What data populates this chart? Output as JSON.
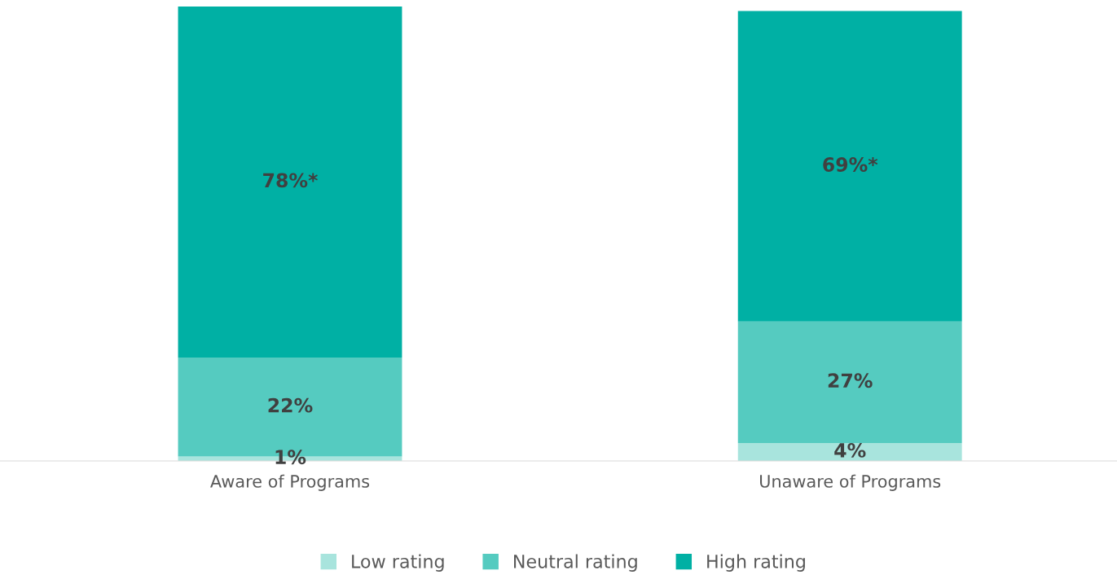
{
  "chart_data": {
    "type": "bar",
    "stacked": true,
    "categories": [
      "Aware of Programs",
      "Unaware of Programs"
    ],
    "series": [
      {
        "name": "Low rating",
        "color": "#a8e4dd",
        "values": [
          1,
          4
        ],
        "value_labels": [
          "1%",
          "4%"
        ]
      },
      {
        "name": "Neutral rating",
        "color": "#55cbc0",
        "values": [
          22,
          27
        ],
        "value_labels": [
          "22%",
          "27%"
        ]
      },
      {
        "name": "High rating",
        "color": "#00b0a4",
        "values": [
          78,
          69
        ],
        "value_labels": [
          "78%*",
          "69%*"
        ]
      }
    ],
    "ylim": [
      0,
      101
    ],
    "tick_labels": "x",
    "grid": false,
    "legend": "bottom",
    "marker": "square"
  }
}
